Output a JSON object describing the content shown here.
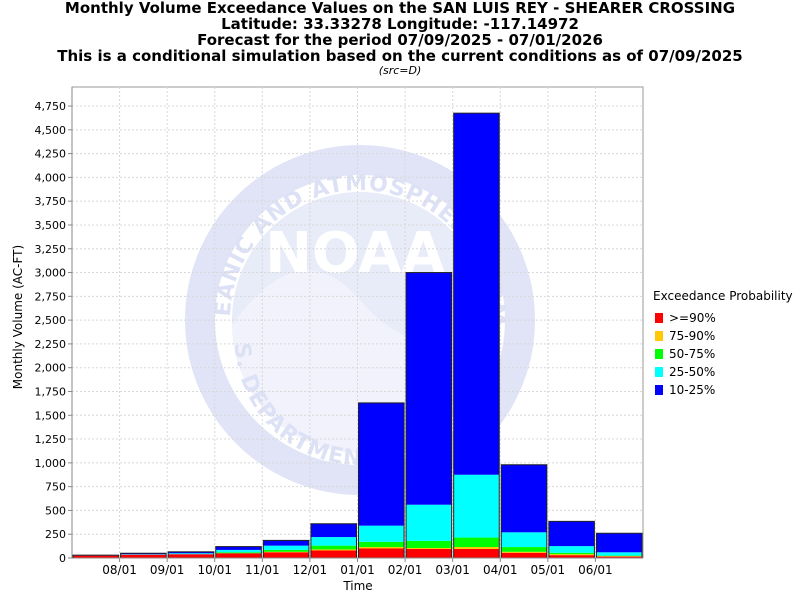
{
  "titles": {
    "line1": "Monthly Volume Exceedance Values on the SAN LUIS REY - SHEARER CROSSING",
    "line2": "Latitude: 33.33278 Longitude: -117.14972",
    "line3": "Forecast for the period 07/09/2025 - 07/01/2026",
    "line4": "This is a conditional simulation based on the current conditions as of 07/09/2025",
    "source": "(src=D)"
  },
  "watermark": {
    "logo_text": "NOAA",
    "ring_top": "NATIONAL OCEANIC AND ATMOSPHERIC ADMINISTRATION",
    "ring_bottom": "U.S. DEPARTMENT OF COMMERCE"
  },
  "chart_data": {
    "type": "bar",
    "stacked": true,
    "xlabel": "Time",
    "ylabel": "Monthly Volume (AC-FT)",
    "ylim": [
      0,
      4950
    ],
    "yticks": [
      0,
      250,
      500,
      750,
      1000,
      1250,
      1500,
      1750,
      2000,
      2250,
      2500,
      2750,
      3000,
      3250,
      3500,
      3750,
      4000,
      4250,
      4500,
      4750
    ],
    "ytick_labels": [
      "0",
      "250",
      "500",
      "750",
      "1,000",
      "1,250",
      "1,500",
      "1,750",
      "2,000",
      "2,250",
      "2,500",
      "2,750",
      "3,000",
      "3,250",
      "3,500",
      "3,750",
      "4,000",
      "4,250",
      "4,500",
      "4,750"
    ],
    "xtick_labels": [
      "08/01",
      "09/01",
      "10/01",
      "11/01",
      "12/01",
      "01/01",
      "02/01",
      "03/01",
      "04/01",
      "05/01",
      "06/01"
    ],
    "categories": [
      "Jul",
      "Aug",
      "Sep",
      "Oct",
      "Nov",
      "Dec",
      "Jan",
      "Feb",
      "Mar",
      "Apr",
      "May",
      "Jun"
    ],
    "series": [
      {
        "name": ">=90%",
        "color": "#ff0000",
        "values": [
          25,
          35,
          40,
          50,
          60,
          80,
          100,
          95,
          95,
          55,
          30,
          15
        ]
      },
      {
        "name": "75-90%",
        "color": "#ffc800",
        "values": [
          0,
          0,
          0,
          0,
          5,
          10,
          15,
          10,
          20,
          10,
          10,
          5
        ]
      },
      {
        "name": "50-75%",
        "color": "#00ff00",
        "values": [
          0,
          0,
          0,
          10,
          20,
          40,
          55,
          75,
          100,
          50,
          15,
          5
        ]
      },
      {
        "name": "25-50%",
        "color": "#00ffff",
        "values": [
          0,
          5,
          10,
          25,
          45,
          90,
          170,
          380,
          660,
          155,
          70,
          35
        ]
      },
      {
        "name": "10-25%",
        "color": "#0000ff",
        "values": [
          5,
          10,
          15,
          35,
          55,
          140,
          1290,
          2440,
          3800,
          710,
          260,
          200
        ]
      }
    ],
    "legend": {
      "title": "Exceedance Probability",
      "position": "right"
    },
    "grid": true
  }
}
